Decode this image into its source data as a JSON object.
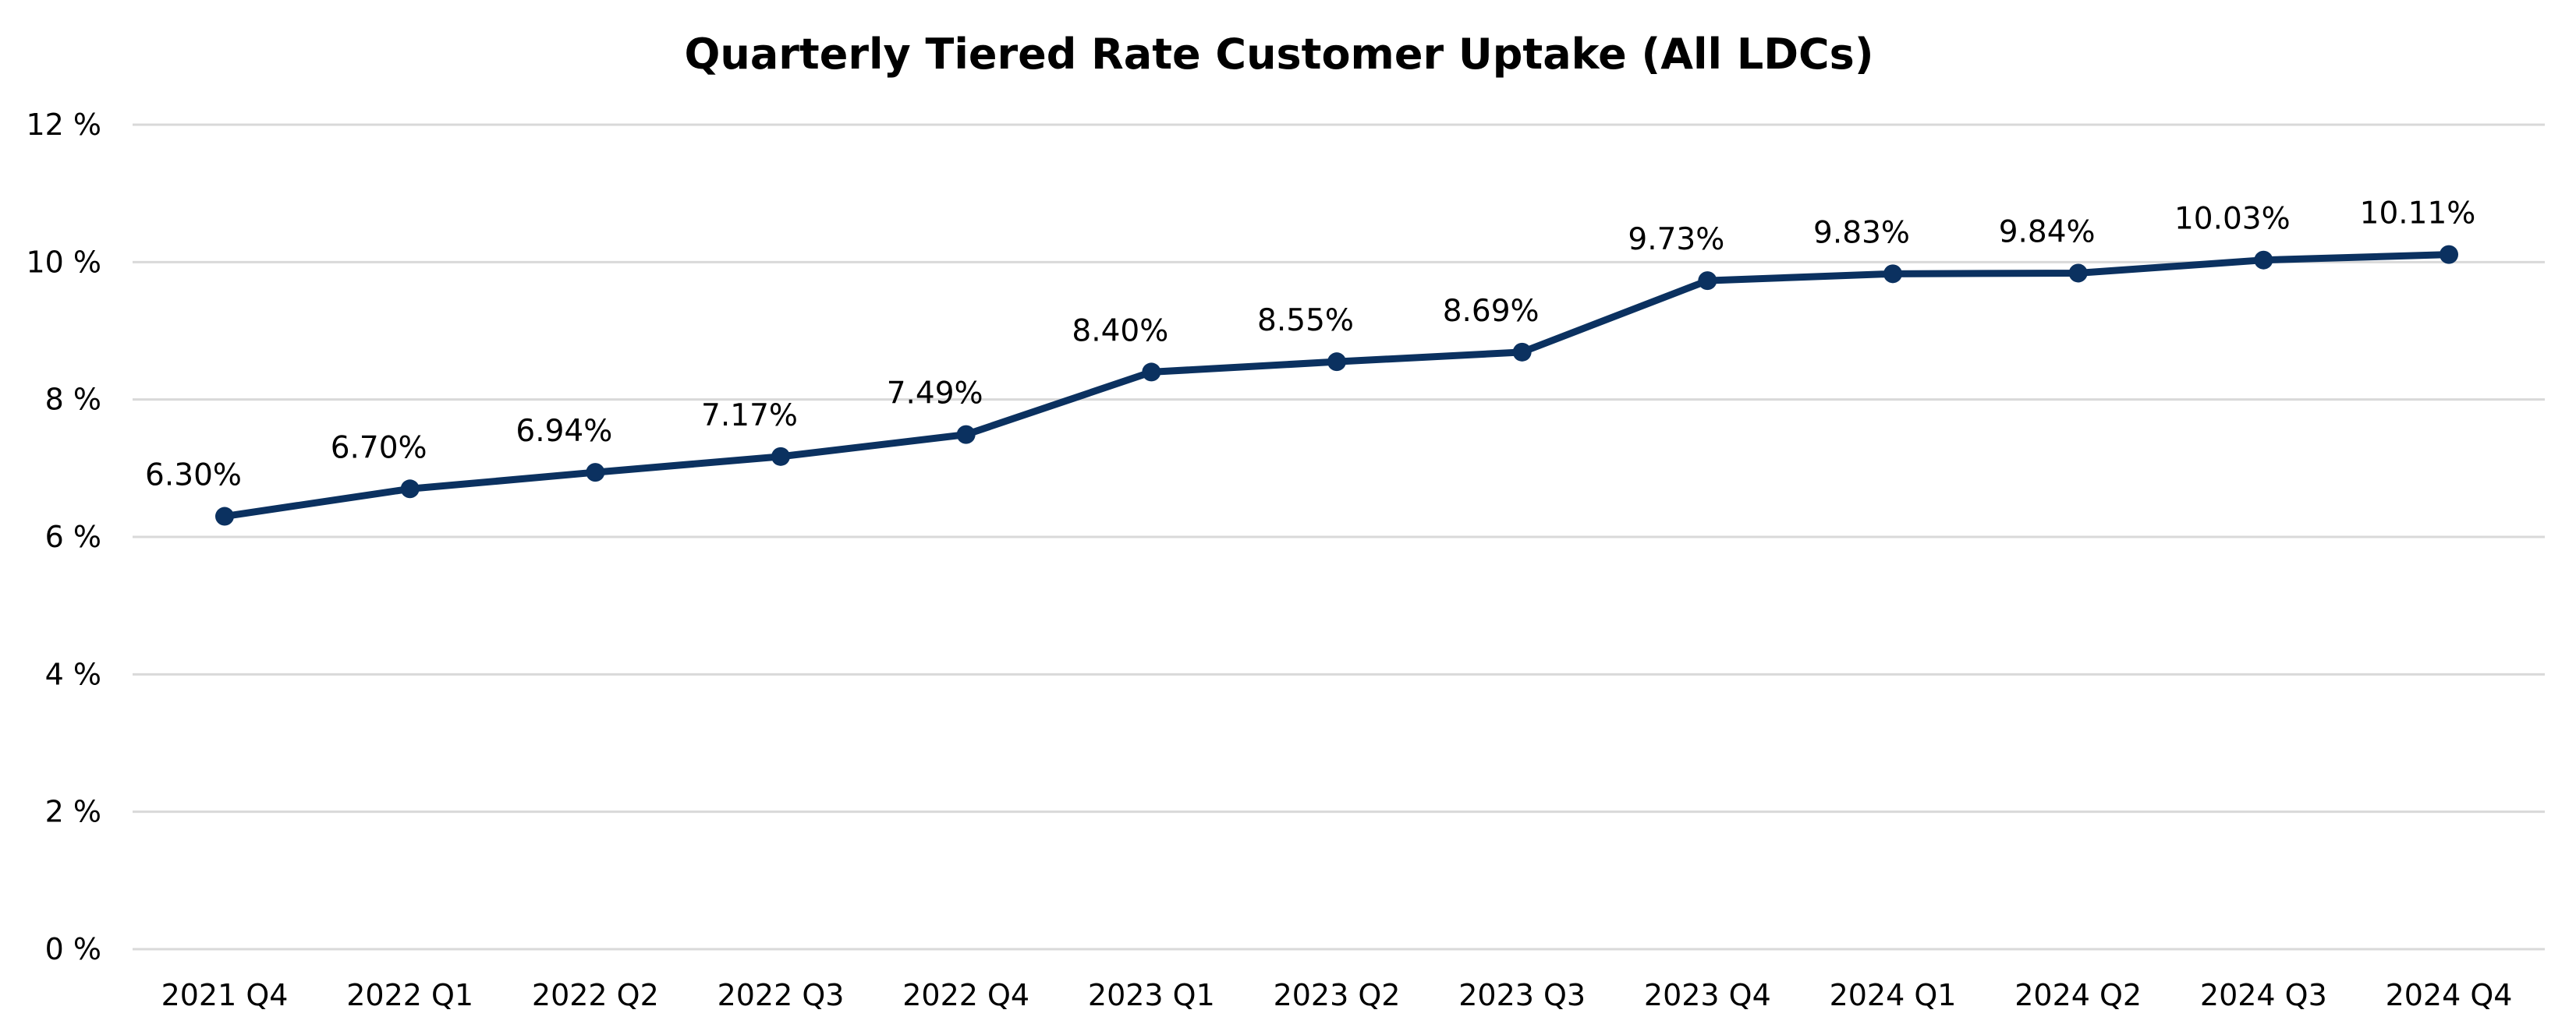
{
  "chart_data": {
    "type": "line",
    "title": "Quarterly Tiered Rate Customer Uptake (All LDCs)",
    "xlabel": "",
    "ylabel": "",
    "categories": [
      "2021 Q4",
      "2022 Q1",
      "2022 Q2",
      "2022 Q3",
      "2022 Q4",
      "2023 Q1",
      "2023 Q2",
      "2023 Q3",
      "2023 Q4",
      "2024 Q1",
      "2024 Q2",
      "2024 Q3",
      "2024 Q4"
    ],
    "series": [
      {
        "name": "Tiered Rate Customer Uptake",
        "values": [
          6.3,
          6.7,
          6.94,
          7.17,
          7.49,
          8.4,
          8.55,
          8.69,
          9.73,
          9.83,
          9.84,
          10.03,
          10.11
        ],
        "labels": [
          "6.30%",
          "6.70%",
          "6.94%",
          "7.17%",
          "7.49%",
          "8.40%",
          "8.55%",
          "8.69%",
          "9.73%",
          "9.83%",
          "9.84%",
          "10.03%",
          "10.11%"
        ]
      }
    ],
    "ylim": [
      0,
      12
    ],
    "yticks": [
      0,
      2,
      4,
      6,
      8,
      10,
      12
    ],
    "ytick_labels": [
      "0 %",
      "2 %",
      "4 %",
      "6 %",
      "8 %",
      "10 %",
      "12 %"
    ],
    "grid": true,
    "legend": "none",
    "colors": {
      "line": "#0b3160",
      "grid": "#d9d9d9",
      "text": "#000000"
    }
  }
}
